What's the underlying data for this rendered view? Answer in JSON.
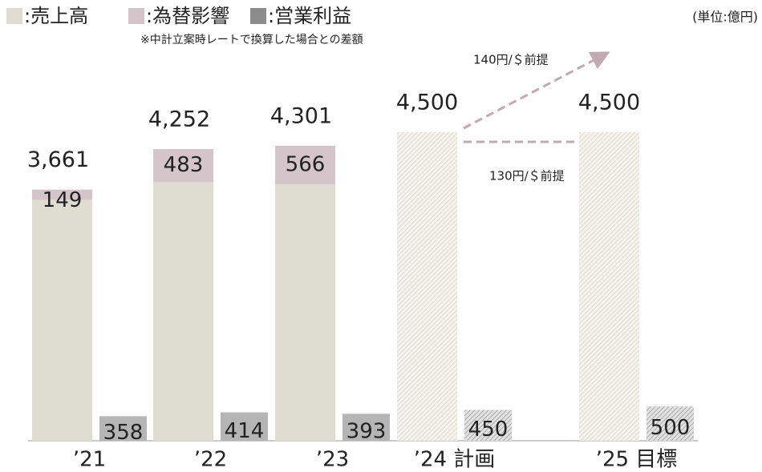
{
  "chart_data": {
    "type": "bar",
    "subtitle": "※中計立案時レートで換算した場合との差額",
    "unit_label": "(単位:億円)",
    "categories": [
      "’21",
      "’22",
      "’23",
      "’24 計画",
      "’25 目標"
    ],
    "series": [
      {
        "name": ":売上高",
        "color": "#dfdcd1",
        "values": [
          3512,
          3769,
          3735,
          4500,
          4500
        ]
      },
      {
        "name": ":為替影響",
        "color": "#d3c5ca",
        "values": [
          149,
          483,
          566,
          null,
          null
        ]
      },
      {
        "name": ":営業利益",
        "color": "#b5b5b5",
        "legend_color": "#8c8c8c",
        "values": [
          358,
          414,
          393,
          450,
          500
        ]
      }
    ],
    "totals": [
      3661,
      4252,
      4301,
      4500,
      4500
    ],
    "total_labels": [
      "3,661",
      "4,252",
      "4,301",
      "4,500",
      "4,500"
    ],
    "hatched": [
      false,
      false,
      false,
      true,
      true
    ],
    "annotations": [
      "140円/＄前提",
      "130円/＄前提"
    ],
    "ylim": [
      0,
      5000
    ]
  }
}
